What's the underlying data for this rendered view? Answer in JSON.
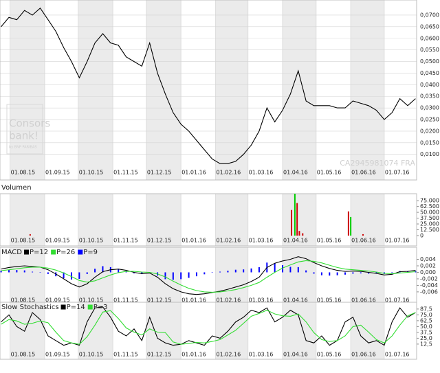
{
  "chart_data": [
    {
      "type": "line",
      "logo": {
        "line1": "Consors",
        "line2": "bank!",
        "tagline": "by BNP PARIBAS"
      },
      "watermark": "CA2945981074 FRA",
      "xlim": [
        "2015-07-23",
        "2016-07-30"
      ],
      "xticks": [
        {
          "value": "2015-08-01",
          "label": "01.08.15"
        },
        {
          "value": "2015-09-01",
          "label": "01.09.15"
        },
        {
          "value": "2015-10-01",
          "label": "01.10.15"
        },
        {
          "value": "2015-11-01",
          "label": "01.11.15"
        },
        {
          "value": "2015-12-01",
          "label": "01.12.15"
        },
        {
          "value": "2016-01-01",
          "label": "01.01.16"
        },
        {
          "value": "2016-02-01",
          "label": "01.02.16"
        },
        {
          "value": "2016-03-01",
          "label": "01.03.16"
        },
        {
          "value": "2016-04-01",
          "label": "01.04.16"
        },
        {
          "value": "2016-05-01",
          "label": "01.05.16"
        },
        {
          "value": "2016-06-01",
          "label": "01.06.16"
        },
        {
          "value": "2016-07-01",
          "label": "01.07.16"
        }
      ],
      "ylim": [
        0.004,
        0.0765
      ],
      "yticks": [
        {
          "value": 0.07,
          "label": "0,0700"
        },
        {
          "value": 0.065,
          "label": "0,0650"
        },
        {
          "value": 0.06,
          "label": "0,0600"
        },
        {
          "value": 0.055,
          "label": "0,0550"
        },
        {
          "value": 0.05,
          "label": "0,0500"
        },
        {
          "value": 0.045,
          "label": "0,0450"
        },
        {
          "value": 0.04,
          "label": "0,0400"
        },
        {
          "value": 0.035,
          "label": "0,0350"
        },
        {
          "value": 0.03,
          "label": "0,0300"
        },
        {
          "value": 0.025,
          "label": "0,0250"
        },
        {
          "value": 0.02,
          "label": "0,0200"
        },
        {
          "value": 0.015,
          "label": "0,0150"
        },
        {
          "value": 0.01,
          "label": "0,0100"
        }
      ],
      "grid": true,
      "x": [
        "2015-07-24",
        "2015-07-31",
        "2015-08-07",
        "2015-08-14",
        "2015-08-21",
        "2015-08-28",
        "2015-09-04",
        "2015-09-11",
        "2015-09-18",
        "2015-09-25",
        "2015-10-02",
        "2015-10-09",
        "2015-10-16",
        "2015-10-23",
        "2015-10-30",
        "2015-11-06",
        "2015-11-13",
        "2015-11-20",
        "2015-11-27",
        "2015-12-04",
        "2015-12-11",
        "2015-12-18",
        "2015-12-25",
        "2016-01-01",
        "2016-01-08",
        "2016-01-15",
        "2016-01-22",
        "2016-01-29",
        "2016-02-05",
        "2016-02-12",
        "2016-02-19",
        "2016-02-26",
        "2016-03-04",
        "2016-03-11",
        "2016-03-18",
        "2016-03-25",
        "2016-04-01",
        "2016-04-08",
        "2016-04-15",
        "2016-04-22",
        "2016-04-29",
        "2016-05-06",
        "2016-05-13",
        "2016-05-20",
        "2016-05-27",
        "2016-06-03",
        "2016-06-10",
        "2016-06-17",
        "2016-06-24",
        "2016-07-01",
        "2016-07-08",
        "2016-07-15",
        "2016-07-22",
        "2016-07-29"
      ],
      "series": [
        {
          "color": "#000000",
          "values": [
            0.065,
            0.069,
            0.068,
            0.072,
            0.07,
            0.073,
            0.068,
            0.063,
            0.056,
            0.05,
            0.043,
            0.05,
            0.058,
            0.062,
            0.058,
            0.057,
            0.052,
            0.05,
            0.048,
            0.058,
            0.045,
            0.036,
            0.028,
            0.023,
            0.02,
            0.016,
            0.012,
            0.008,
            0.006,
            0.006,
            0.007,
            0.01,
            0.014,
            0.02,
            0.03,
            0.024,
            0.029,
            0.036,
            0.046,
            0.033,
            0.031,
            0.031,
            0.031,
            0.03,
            0.03,
            0.033,
            0.032,
            0.031,
            0.029,
            0.025,
            0.028,
            0.034,
            0.031,
            0.034
          ]
        }
      ]
    },
    {
      "type": "bar",
      "title": "Volumen",
      "xlim": [
        "2015-07-23",
        "2016-07-30"
      ],
      "xticks": [
        {
          "value": "2015-08-01",
          "label": "01.08.15"
        },
        {
          "value": "2015-09-01",
          "label": "01.09.15"
        },
        {
          "value": "2015-10-01",
          "label": "01.10.15"
        },
        {
          "value": "2015-11-01",
          "label": "01.11.15"
        },
        {
          "value": "2015-12-01",
          "label": "01.12.15"
        },
        {
          "value": "2016-01-01",
          "label": "01.01.16"
        },
        {
          "value": "2016-02-01",
          "label": "01.02.16"
        },
        {
          "value": "2016-03-01",
          "label": "01.03.16"
        },
        {
          "value": "2016-04-01",
          "label": "01.04.16"
        },
        {
          "value": "2016-05-01",
          "label": "01.05.16"
        },
        {
          "value": "2016-06-01",
          "label": "01.06.16"
        },
        {
          "value": "2016-07-01",
          "label": "01.07.16"
        }
      ],
      "ylim": [
        -3000,
        90000
      ],
      "yticks": [
        {
          "value": 75000,
          "label": "75.000"
        },
        {
          "value": 62500,
          "label": "62.500"
        },
        {
          "value": 50000,
          "label": "50.000"
        },
        {
          "value": 37500,
          "label": "37.500"
        },
        {
          "value": 25000,
          "label": "25.000"
        },
        {
          "value": 12500,
          "label": "12.500"
        },
        0
      ],
      "x": [
        "2015-08-19",
        "2016-04-09",
        "2016-04-12",
        "2016-04-14",
        "2016-04-16",
        "2016-04-19",
        "2016-05-30",
        "2016-06-01",
        "2016-06-12"
      ],
      "values": [
        3000,
        55000,
        90000,
        70000,
        10000,
        5000,
        52000,
        40000,
        3000
      ],
      "colors": [
        "#cc0000",
        "#cc0000",
        "#00cc00",
        "#cc0000",
        "#cc0000",
        "#cc0000",
        "#cc0000",
        "#00cc00",
        "#cc0000"
      ]
    },
    {
      "type": "combo",
      "title": "MACD",
      "xlim": [
        "2015-07-23",
        "2016-07-30"
      ],
      "xticks": [
        {
          "value": "2015-08-01",
          "label": "01.08.15"
        },
        {
          "value": "2015-09-01",
          "label": "01.09.15"
        },
        {
          "value": "2015-10-01",
          "label": "01.10.15"
        },
        {
          "value": "2015-11-01",
          "label": "01.11.15"
        },
        {
          "value": "2015-12-01",
          "label": "01.12.15"
        },
        {
          "value": "2016-01-01",
          "label": "01.01.16"
        },
        {
          "value": "2016-02-01",
          "label": "01.02.16"
        },
        {
          "value": "2016-03-01",
          "label": "01.03.16"
        },
        {
          "value": "2016-04-01",
          "label": "01.04.16"
        },
        {
          "value": "2016-05-01",
          "label": "01.05.16"
        },
        {
          "value": "2016-06-01",
          "label": "01.06.16"
        },
        {
          "value": "2016-07-01",
          "label": "01.07.16"
        }
      ],
      "ylim": [
        -0.0075,
        0.0077
      ],
      "yticks": [
        {
          "value": 0.004,
          "label": "0,004"
        },
        {
          "value": 0.002,
          "label": "0,002"
        },
        {
          "value": 0,
          "label": "0,000"
        },
        {
          "value": -0.002,
          "label": "-0,002"
        },
        {
          "value": -0.004,
          "label": "-0,004"
        },
        {
          "value": -0.006,
          "label": "-0,006"
        }
      ],
      "x": [
        "2015-07-24",
        "2015-07-31",
        "2015-08-07",
        "2015-08-14",
        "2015-08-21",
        "2015-08-28",
        "2015-09-04",
        "2015-09-11",
        "2015-09-18",
        "2015-09-25",
        "2015-10-02",
        "2015-10-09",
        "2015-10-16",
        "2015-10-23",
        "2015-10-30",
        "2015-11-06",
        "2015-11-13",
        "2015-11-20",
        "2015-11-27",
        "2015-12-04",
        "2015-12-11",
        "2015-12-18",
        "2015-12-25",
        "2016-01-01",
        "2016-01-08",
        "2016-01-15",
        "2016-01-22",
        "2016-01-29",
        "2016-02-05",
        "2016-02-12",
        "2016-02-19",
        "2016-02-26",
        "2016-03-04",
        "2016-03-11",
        "2016-03-18",
        "2016-03-25",
        "2016-04-01",
        "2016-04-08",
        "2016-04-15",
        "2016-04-22",
        "2016-04-29",
        "2016-05-06",
        "2016-05-13",
        "2016-05-20",
        "2016-05-27",
        "2016-06-03",
        "2016-06-10",
        "2016-06-17",
        "2016-06-24",
        "2016-07-01",
        "2016-07-08",
        "2016-07-15",
        "2016-07-22",
        "2016-07-29"
      ],
      "series": [
        {
          "name": "P=9",
          "color": "#0000ff",
          "type": "bar",
          "values": [
            0.0005,
            0.0007,
            0.0007,
            0.0006,
            0.0002,
            0.0,
            -0.0005,
            -0.0012,
            -0.0018,
            -0.0022,
            -0.002,
            -0.0005,
            0.0011,
            0.0019,
            0.0016,
            0.0011,
            0.0003,
            -0.0003,
            -0.0005,
            -0.0002,
            -0.001,
            -0.0021,
            -0.0023,
            -0.0021,
            -0.0017,
            -0.0012,
            -0.0006,
            -0.0001,
            0.0002,
            0.0005,
            0.0008,
            0.0009,
            0.0012,
            0.0016,
            0.003,
            0.0028,
            0.0022,
            0.0017,
            0.0016,
            0.0006,
            -0.0004,
            -0.0009,
            -0.001,
            -0.0009,
            -0.0007,
            -0.0004,
            -0.0003,
            -0.0004,
            -0.0004,
            -0.0005,
            -0.0002,
            0.0004,
            0.0003,
            0.0004
          ]
        },
        {
          "name": "P=12",
          "color": "#000000",
          "values": [
            0.001,
            0.0015,
            0.0018,
            0.002,
            0.0018,
            0.0016,
            0.0008,
            -0.0005,
            -0.002,
            -0.0035,
            -0.0045,
            -0.0035,
            -0.0015,
            0.0002,
            0.0008,
            0.001,
            0.0006,
            0.0,
            -0.0004,
            -0.0002,
            -0.0015,
            -0.0035,
            -0.005,
            -0.006,
            -0.0066,
            -0.0068,
            -0.0066,
            -0.0062,
            -0.0058,
            -0.0052,
            -0.0045,
            -0.0038,
            -0.0028,
            -0.0015,
            0.0015,
            0.0028,
            0.0035,
            0.004,
            0.0048,
            0.0042,
            0.003,
            0.002,
            0.0012,
            0.0006,
            0.0003,
            0.0004,
            0.0003,
            0.0,
            -0.0003,
            -0.0008,
            -0.0006,
            0.0002,
            0.0003,
            0.0006
          ]
        },
        {
          "name": "P=26",
          "color": "#33dd33",
          "values": [
            0.0005,
            0.0008,
            0.0011,
            0.0014,
            0.0016,
            0.0016,
            0.0013,
            0.0007,
            -0.0002,
            -0.0013,
            -0.0025,
            -0.003,
            -0.0026,
            -0.0017,
            -0.0008,
            -0.0001,
            0.0003,
            0.0003,
            0.0001,
            0.0,
            -0.0005,
            -0.0014,
            -0.0027,
            -0.0039,
            -0.0049,
            -0.0056,
            -0.006,
            -0.0061,
            -0.006,
            -0.0057,
            -0.0053,
            -0.0047,
            -0.004,
            -0.0031,
            -0.0015,
            0.0,
            0.0013,
            0.0023,
            0.0032,
            0.0036,
            0.0034,
            0.0029,
            0.0022,
            0.0015,
            0.001,
            0.0008,
            0.0006,
            0.0004,
            0.0001,
            -0.0003,
            -0.0004,
            -0.0002,
            0.0,
            0.0002
          ]
        }
      ]
    },
    {
      "type": "line",
      "title": "Slow Stochastics",
      "xlim": [
        "2015-07-23",
        "2016-07-30"
      ],
      "xticks": [
        {
          "value": "2015-08-01",
          "label": "01.08.15"
        },
        {
          "value": "2015-09-01",
          "label": "01.09.15"
        },
        {
          "value": "2015-10-01",
          "label": "01.10.15"
        },
        {
          "value": "2015-11-01",
          "label": "01.11.15"
        },
        {
          "value": "2015-12-01",
          "label": "01.12.15"
        },
        {
          "value": "2016-01-01",
          "label": "01.01.16"
        },
        {
          "value": "2016-02-01",
          "label": "01.02.16"
        },
        {
          "value": "2016-03-01",
          "label": "01.03.16"
        },
        {
          "value": "2016-04-01",
          "label": "01.04.16"
        },
        {
          "value": "2016-05-01",
          "label": "01.05.16"
        },
        {
          "value": "2016-06-01",
          "label": "01.06.16"
        },
        {
          "value": "2016-07-01",
          "label": "01.07.16"
        }
      ],
      "ylim": [
        -20,
        102
      ],
      "yticks": [
        {
          "value": 87.5,
          "label": "87,5"
        },
        {
          "value": 75,
          "label": "75,0"
        },
        {
          "value": 62.5,
          "label": "62,5"
        },
        {
          "value": 50,
          "label": "50,0"
        },
        {
          "value": 37.5,
          "label": "37,5"
        },
        {
          "value": 25,
          "label": "25,0"
        },
        {
          "value": 12.5,
          "label": "12,5"
        }
      ],
      "x": [
        "2015-07-24",
        "2015-07-31",
        "2015-08-07",
        "2015-08-14",
        "2015-08-21",
        "2015-08-28",
        "2015-09-04",
        "2015-09-11",
        "2015-09-18",
        "2015-09-25",
        "2015-10-02",
        "2015-10-09",
        "2015-10-16",
        "2015-10-23",
        "2015-10-30",
        "2015-11-06",
        "2015-11-13",
        "2015-11-20",
        "2015-11-27",
        "2015-12-04",
        "2015-12-11",
        "2015-12-18",
        "2015-12-25",
        "2016-01-01",
        "2016-01-08",
        "2016-01-15",
        "2016-01-22",
        "2016-01-29",
        "2016-02-05",
        "2016-02-12",
        "2016-02-19",
        "2016-02-26",
        "2016-03-04",
        "2016-03-11",
        "2016-03-18",
        "2016-03-25",
        "2016-04-01",
        "2016-04-08",
        "2016-04-15",
        "2016-04-22",
        "2016-04-29",
        "2016-05-06",
        "2016-05-13",
        "2016-05-20",
        "2016-05-27",
        "2016-06-03",
        "2016-06-10",
        "2016-06-17",
        "2016-06-24",
        "2016-07-01",
        "2016-07-08",
        "2016-07-15",
        "2016-07-22",
        "2016-07-29"
      ],
      "series": [
        {
          "name": "P=14",
          "color": "#000000",
          "values": [
            60,
            75,
            50,
            40,
            80,
            65,
            30,
            20,
            10,
            15,
            10,
            60,
            90,
            92,
            70,
            40,
            30,
            45,
            20,
            70,
            25,
            15,
            10,
            12,
            20,
            15,
            10,
            30,
            25,
            40,
            60,
            70,
            85,
            80,
            90,
            60,
            70,
            85,
            75,
            20,
            15,
            30,
            10,
            20,
            60,
            70,
            30,
            15,
            20,
            10,
            60,
            90,
            70,
            80
          ]
        },
        {
          "name": "P=3",
          "color": "#33dd33",
          "values": [
            55,
            65,
            62,
            55,
            57,
            62,
            58,
            38,
            20,
            15,
            12,
            28,
            53,
            81,
            84,
            67,
            47,
            38,
            32,
            45,
            38,
            37,
            17,
            12,
            14,
            16,
            15,
            18,
            22,
            32,
            42,
            57,
            72,
            78,
            85,
            77,
            73,
            72,
            77,
            60,
            37,
            22,
            18,
            20,
            30,
            50,
            53,
            38,
            22,
            15,
            30,
            53,
            73,
            80
          ]
        }
      ]
    }
  ]
}
